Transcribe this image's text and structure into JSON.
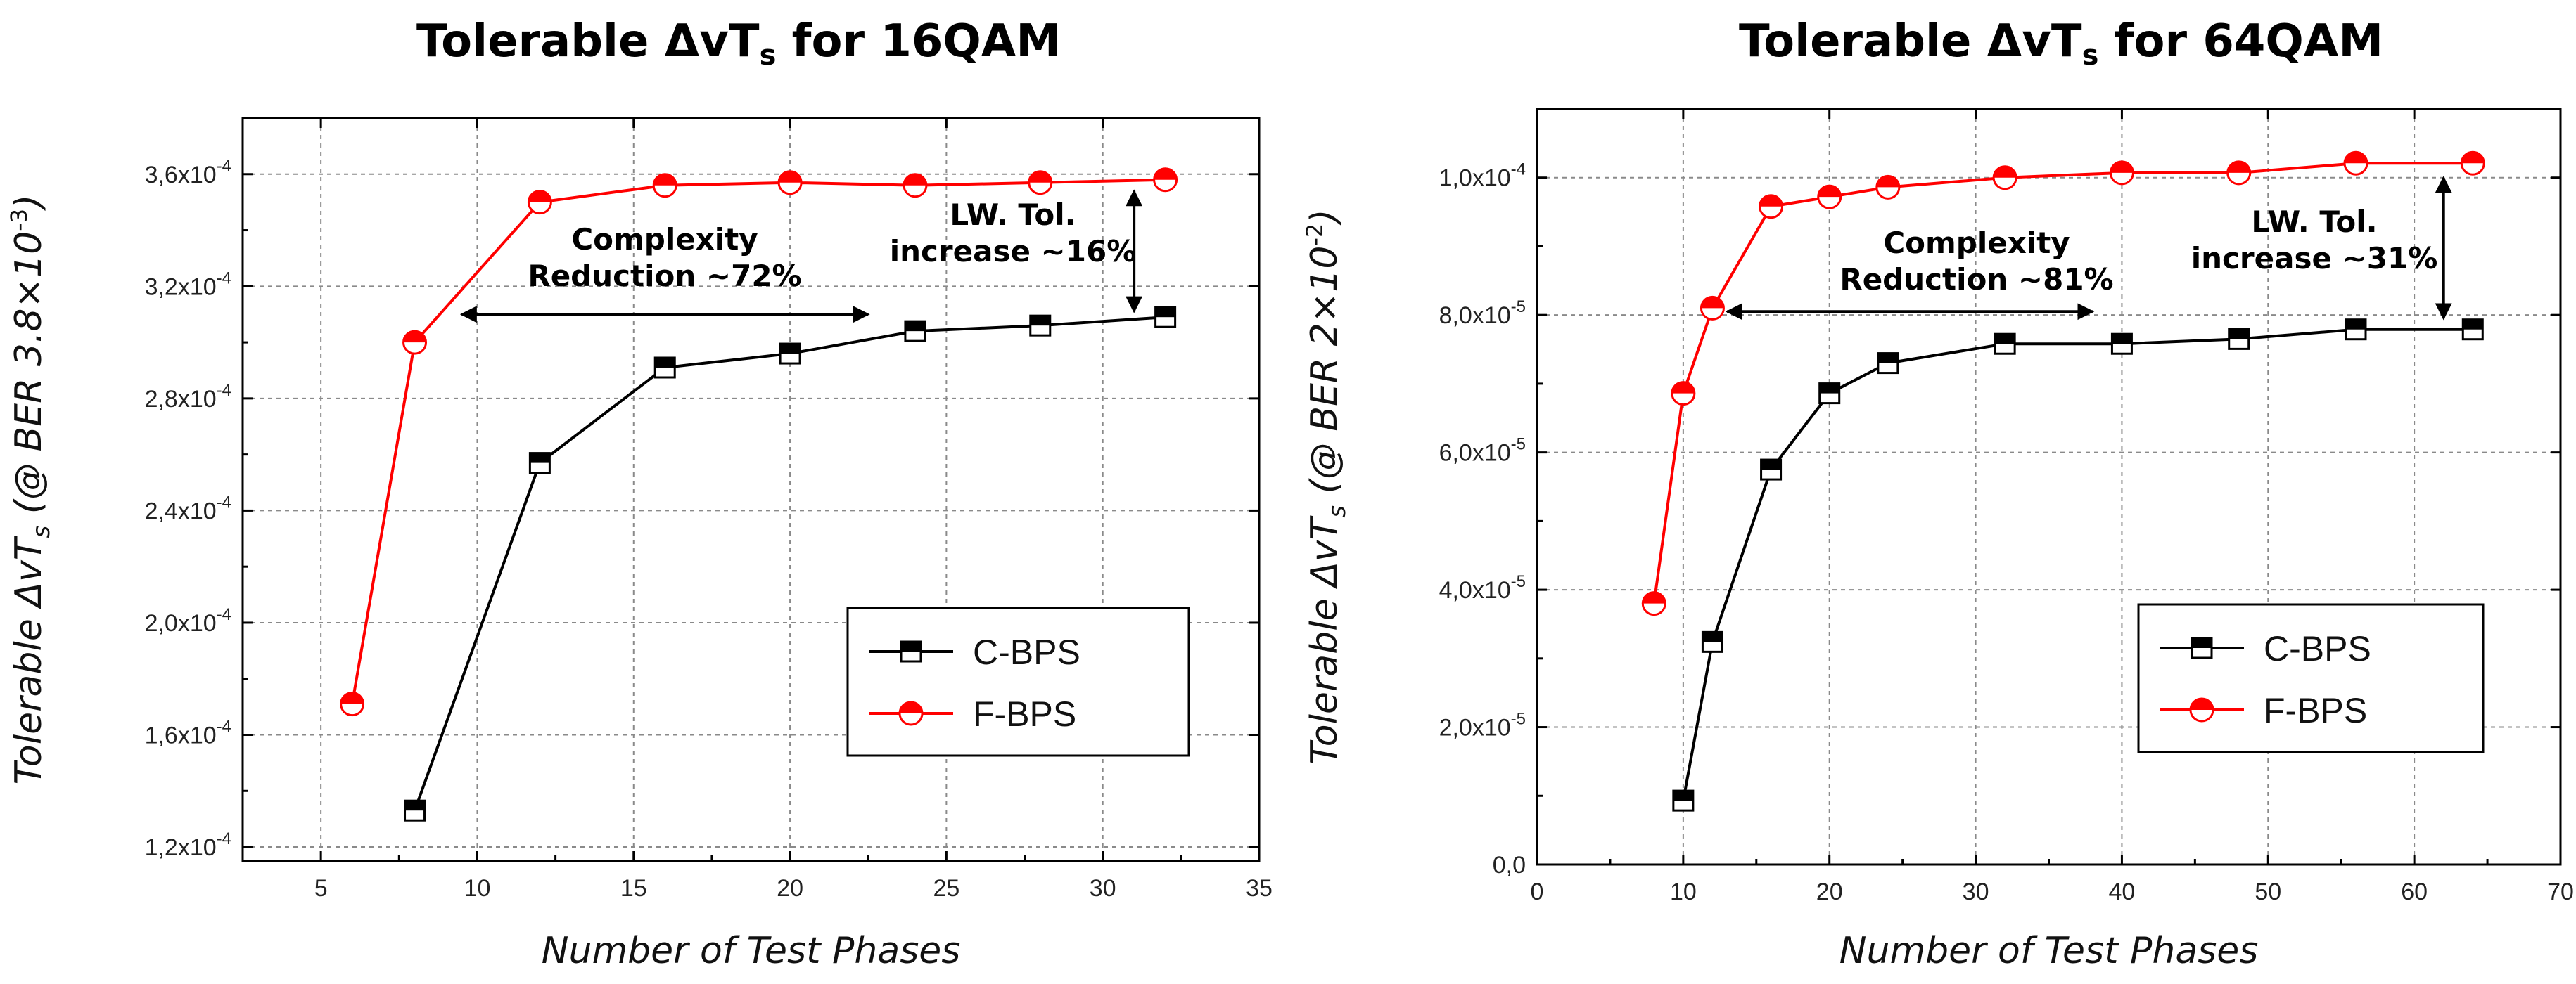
{
  "chart_data": [
    {
      "type": "line",
      "title": "Tolerable ΔvT",
      "title_sub": "s",
      "title_tail": " for 16QAM",
      "xlabel": "Number of Test Phases",
      "ylabel_parts": [
        "Tolerable ΔvT",
        "s",
        " (@ BER 3.8×10",
        "-3",
        ")"
      ],
      "xlim": [
        2.5,
        35
      ],
      "ylim": [
        0.000115,
        0.00038
      ],
      "x_ticks": [
        5,
        10,
        15,
        20,
        25,
        30,
        35
      ],
      "x_tick_labels": [
        "5",
        "10",
        "15",
        "20",
        "25",
        "30",
        "35"
      ],
      "y_ticks": [
        0.00012,
        0.00016,
        0.0002,
        0.00024,
        0.00028,
        0.00032,
        0.00036
      ],
      "y_tick_labels": [
        {
          "m": "1,2x10",
          "e": "-4"
        },
        {
          "m": "1,6x10",
          "e": "-4"
        },
        {
          "m": "2,0x10",
          "e": "-4"
        },
        {
          "m": "2,4x10",
          "e": "-4"
        },
        {
          "m": "2,8x10",
          "e": "-4"
        },
        {
          "m": "3,2x10",
          "e": "-4"
        },
        {
          "m": "3,6x10",
          "e": "-4"
        }
      ],
      "grid": true,
      "legend_position": "bottom-right",
      "series": [
        {
          "name": "C-BPS",
          "color": "#000000",
          "marker": "square",
          "x": [
            8,
            12,
            16,
            20,
            24,
            28,
            32
          ],
          "y": [
            0.000133,
            0.000257,
            0.000291,
            0.000296,
            0.000304,
            0.000306,
            0.000309
          ]
        },
        {
          "name": "F-BPS",
          "color": "#ff0000",
          "marker": "circle",
          "x": [
            6,
            8,
            12,
            16,
            20,
            24,
            28,
            32
          ],
          "y": [
            0.000171,
            0.0003,
            0.00035,
            0.000356,
            0.000357,
            0.000356,
            0.000357,
            0.000358
          ]
        }
      ],
      "annotations": {
        "complexity_lines": [
          "Complexity",
          "Reduction ~72%"
        ],
        "complexity_arrow": {
          "x1": 9.5,
          "x2": 22.5,
          "y": 0.00031
        },
        "linewidth_lines": [
          "LW. Tol.",
          "increase ~16%"
        ],
        "linewidth_arrow": {
          "x": 31,
          "y1": 0.000354,
          "y2": 0.000311
        }
      }
    },
    {
      "type": "line",
      "title": "Tolerable ΔvT",
      "title_sub": "s",
      "title_tail": " for 64QAM",
      "xlabel": "Number of Test Phases",
      "ylabel_parts": [
        "Tolerable ΔvT",
        "s",
        " (@ BER 2×10",
        "-2",
        ")"
      ],
      "xlim": [
        0,
        70
      ],
      "ylim": [
        0,
        0.00011
      ],
      "x_ticks": [
        0,
        10,
        20,
        30,
        40,
        50,
        60,
        70
      ],
      "x_tick_labels": [
        "0",
        "10",
        "20",
        "30",
        "40",
        "50",
        "60",
        "70"
      ],
      "y_ticks": [
        0,
        2e-05,
        4e-05,
        6e-05,
        8e-05,
        0.0001
      ],
      "y_tick_labels": [
        {
          "m": "0,0",
          "e": ""
        },
        {
          "m": "2,0x10",
          "e": "-5"
        },
        {
          "m": "4,0x10",
          "e": "-5"
        },
        {
          "m": "6,0x10",
          "e": "-5"
        },
        {
          "m": "8,0x10",
          "e": "-5"
        },
        {
          "m": "1,0x10",
          "e": "-4"
        }
      ],
      "grid": true,
      "legend_position": "bottom-right",
      "series": [
        {
          "name": "C-BPS",
          "color": "#000000",
          "marker": "square",
          "x": [
            10,
            12,
            16,
            20,
            24,
            32,
            40,
            48,
            56,
            64
          ],
          "y": [
            9.3e-06,
            3.24e-05,
            5.75e-05,
            6.86e-05,
            7.3e-05,
            7.58e-05,
            7.58e-05,
            7.65e-05,
            7.79e-05,
            7.79e-05
          ]
        },
        {
          "name": "F-BPS",
          "color": "#ff0000",
          "marker": "circle",
          "x": [
            8,
            10,
            12,
            16,
            20,
            24,
            32,
            40,
            48,
            56,
            64
          ],
          "y": [
            3.8e-05,
            6.86e-05,
            8.1e-05,
            9.58e-05,
            9.72e-05,
            9.86e-05,
            0.0001,
            0.0001007,
            0.0001007,
            0.0001021,
            0.0001021
          ]
        }
      ],
      "annotations": {
        "complexity_lines": [
          "Complexity",
          "Reduction ~81%"
        ],
        "complexity_arrow": {
          "x1": 13,
          "x2": 38,
          "y": 8.05e-05
        },
        "linewidth_lines": [
          "LW. Tol.",
          "increase ~31%"
        ],
        "linewidth_arrow": {
          "x": 62,
          "y1": 0.0001,
          "y2": 7.95e-05
        }
      }
    }
  ]
}
